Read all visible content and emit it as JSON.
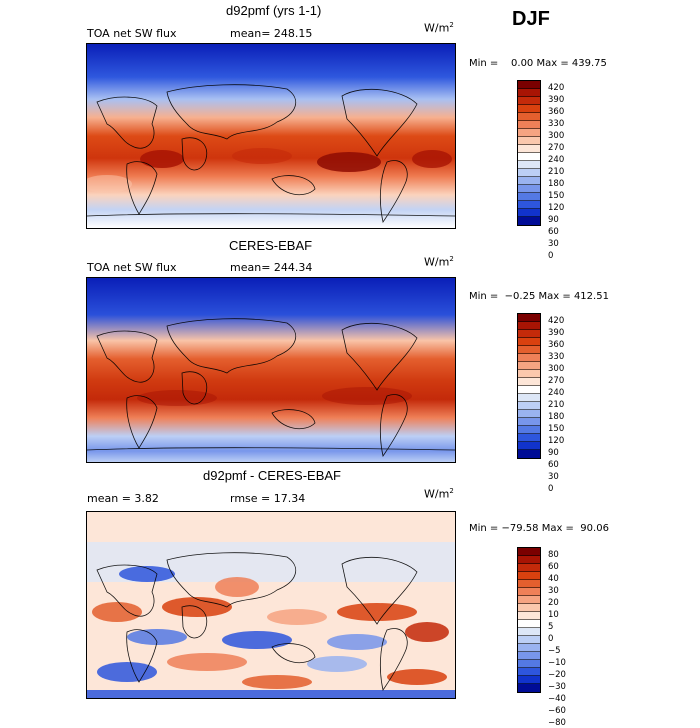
{
  "season": "DJF",
  "panels": [
    {
      "title": "d92pmf (yrs 1-1)",
      "left_label": "TOA net SW flux",
      "mid_label": "mean=  248.15",
      "units": "W/m",
      "units_exp": "2",
      "min_label": "Min =",
      "min_value": "0.00",
      "max_label": "Max =",
      "max_value": "439.75"
    },
    {
      "title": "CERES-EBAF",
      "left_label": "TOA net SW flux",
      "mid_label": "mean=  244.34",
      "units": "W/m",
      "units_exp": "2",
      "min_label": "Min =",
      "min_value": "−0.25",
      "max_label": "Max =",
      "max_value": "412.51"
    },
    {
      "title": "d92pmf - CERES-EBAF",
      "left_label": "mean =    3.82",
      "mid_label": "rmse =  17.34",
      "units": "W/m",
      "units_exp": "2",
      "min_label": "Min =",
      "min_value": "−79.58",
      "max_label": "Max =",
      "max_value": "90.06"
    }
  ],
  "colorbar_flux": {
    "colors": [
      "#7a0000",
      "#a81404",
      "#c42a0a",
      "#d9410f",
      "#e45f2e",
      "#ef8058",
      "#f6a482",
      "#fbc8ad",
      "#fde6d8",
      "#ffffff",
      "#dde7f7",
      "#bccff5",
      "#9ab3f0",
      "#7896eb",
      "#5479e4",
      "#2e56dd",
      "#1133cc",
      "#000c96"
    ],
    "ticks": [
      "420",
      "390",
      "360",
      "330",
      "300",
      "270",
      "240",
      "210",
      "180",
      "150",
      "120",
      "90",
      "60",
      "30",
      "0"
    ]
  },
  "colorbar_diff": {
    "colors": [
      "#7a0000",
      "#a81404",
      "#c42a0a",
      "#d9410f",
      "#e45f2e",
      "#ef8058",
      "#f6a482",
      "#fbc8ad",
      "#fde6d8",
      "#ffffff",
      "#dde7f7",
      "#bccff5",
      "#9ab3f0",
      "#7896eb",
      "#5479e4",
      "#2e56dd",
      "#1133cc",
      "#000c96"
    ],
    "ticks": [
      "80",
      "60",
      "40",
      "30",
      "20",
      "10",
      "5",
      "0",
      "−5",
      "−10",
      "−20",
      "−30",
      "−40",
      "−60",
      "−80"
    ]
  }
}
